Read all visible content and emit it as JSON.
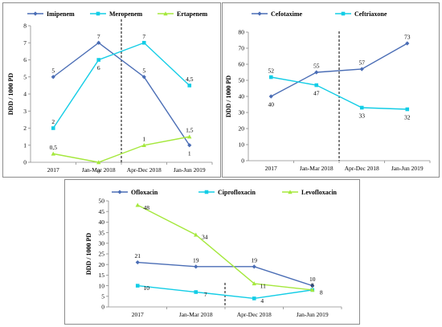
{
  "colors": {
    "dark_blue": "#4a6db5",
    "cyan": "#13cde6",
    "green": "#a5e83d",
    "axis": "#8c8c8c",
    "text": "#000000"
  },
  "chart_data": [
    {
      "type": "line",
      "ylabel": "DDD / 1000 PD",
      "ylim": [
        0,
        8
      ],
      "yticks": [
        "0",
        "1",
        "2",
        "3",
        "4",
        "5",
        "6",
        "7",
        "8"
      ],
      "categories": [
        "2017",
        "Jan-Mar 2018",
        "Apr-Dec 2018",
        "Jan-Jun 2019"
      ],
      "intervention_line": "between Jan-Mar 2018 and Apr-Dec 2018 (dashed)",
      "legend_position": "top",
      "series": [
        {
          "name": "Imipenem",
          "color": "dark_blue",
          "marker": "diamond",
          "values": [
            5,
            7,
            5,
            1
          ],
          "labels": [
            "5",
            "7",
            "5",
            "1"
          ]
        },
        {
          "name": "Meropenem",
          "color": "cyan",
          "marker": "square",
          "values": [
            2,
            6,
            7,
            4.5
          ],
          "labels": [
            "2",
            "6",
            "7",
            "4,5"
          ]
        },
        {
          "name": "Ertapenem",
          "color": "green",
          "marker": "triangle",
          "values": [
            0.5,
            0,
            1,
            1.5
          ],
          "labels": [
            "0,5",
            "0",
            "1",
            "1,5"
          ]
        }
      ]
    },
    {
      "type": "line",
      "ylabel": "DDD / 1000 PD",
      "ylim": [
        0,
        80
      ],
      "yticks": [
        "0",
        "10",
        "20",
        "30",
        "40",
        "50",
        "60",
        "70",
        "80"
      ],
      "categories": [
        "2017",
        "Jan-Mar 2018",
        "Apr-Dec 2018",
        "Jan-Jun 2019"
      ],
      "intervention_line": "between Jan-Mar 2018 and Apr-Dec 2018 (dashed)",
      "legend_position": "top",
      "series": [
        {
          "name": "Cefotaxime",
          "color": "dark_blue",
          "marker": "diamond",
          "values": [
            40,
            55,
            57,
            73
          ],
          "labels": [
            "40",
            "55",
            "57",
            "73"
          ]
        },
        {
          "name": "Ceftriaxone",
          "color": "cyan",
          "marker": "square",
          "values": [
            52,
            47,
            33,
            32
          ],
          "labels": [
            "52",
            "47",
            "33",
            "32"
          ]
        }
      ]
    },
    {
      "type": "line",
      "ylabel": "DDD / 1000 PD",
      "ylim": [
        0,
        50
      ],
      "yticks": [
        "0",
        "5",
        "10",
        "15",
        "20",
        "25",
        "30",
        "35",
        "40",
        "45",
        "50"
      ],
      "categories": [
        "2017",
        "Jan-Mar 2018",
        "Apr-Dec 2018",
        "Jan-Jun 2019"
      ],
      "intervention_line": "between Jan-Mar 2018 and Apr-Dec 2018 (dashed)",
      "legend_position": "top",
      "series": [
        {
          "name": "Ofloxacin",
          "color": "dark_blue",
          "marker": "diamond",
          "values": [
            21,
            19,
            19,
            10
          ],
          "labels": [
            "21",
            "19",
            "19",
            "10"
          ]
        },
        {
          "name": "Ciprofloxacin",
          "color": "cyan",
          "marker": "square",
          "values": [
            10,
            7,
            4,
            8
          ],
          "labels": [
            "10",
            "7",
            "4",
            "8"
          ]
        },
        {
          "name": "Levofloxacin",
          "color": "green",
          "marker": "triangle",
          "values": [
            48,
            34,
            11,
            8
          ],
          "labels": [
            "48",
            "34",
            "11",
            "8"
          ]
        }
      ]
    }
  ]
}
